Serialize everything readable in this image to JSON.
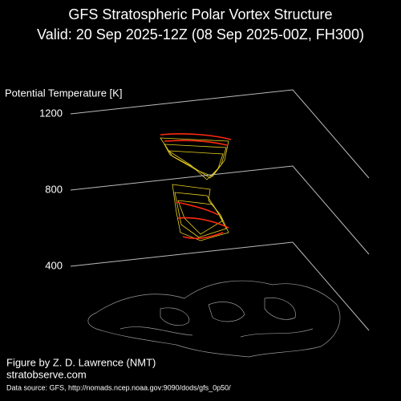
{
  "chart_data": {
    "type": "isosurface3d",
    "title": "GFS Stratospheric Polar Vortex Structure",
    "subtitle": "Valid: 20 Sep 2025-12Z  (08 Sep 2025-00Z, FH300)",
    "ylabel": "Potential Temperature [K]",
    "ylim": [
      400,
      1200
    ],
    "yticks": [
      400,
      800,
      1200
    ],
    "grid": true,
    "annotations": [
      "Figure by Z. D. Lawrence (NMT)",
      "stratobserve.com",
      "Data source: GFS, http://nomads.ncep.noaa.gov:9090/dods/gfs_0p50/"
    ]
  }
}
